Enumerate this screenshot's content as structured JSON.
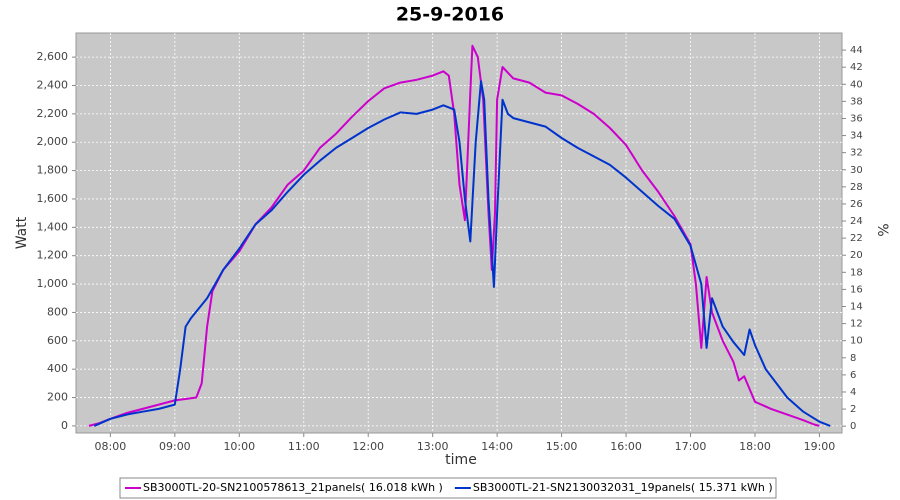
{
  "chart_data": {
    "type": "line",
    "title": "25-9-2016",
    "x_label": "time",
    "y_label": "Watt",
    "y2_label": "%",
    "xlim": [
      "07:28",
      "19:21"
    ],
    "xticks": [
      "08:00",
      "09:00",
      "10:00",
      "11:00",
      "12:00",
      "13:00",
      "14:00",
      "15:00",
      "16:00",
      "17:00",
      "18:00",
      "19:00"
    ],
    "ylim": [
      -50,
      2770
    ],
    "yticks": [
      0,
      200,
      400,
      600,
      800,
      {
        "value": 1000,
        "label": "1,000"
      },
      {
        "value": 1200,
        "label": "1,200"
      },
      {
        "value": 1400,
        "label": "1,400"
      },
      {
        "value": 1600,
        "label": "1,600"
      },
      {
        "value": 1800,
        "label": "1,800"
      },
      {
        "value": 2000,
        "label": "2,000"
      },
      {
        "value": 2200,
        "label": "2,200"
      },
      {
        "value": 2400,
        "label": "2,400"
      },
      {
        "value": 2600,
        "label": "2,600"
      }
    ],
    "y2lim": [
      -0.8,
      46
    ],
    "y2ticks": [
      0,
      2,
      4,
      6,
      8,
      10,
      12,
      14,
      16,
      18,
      20,
      22,
      24,
      26,
      28,
      30,
      32,
      34,
      36,
      38,
      40,
      42,
      44
    ],
    "grid": true,
    "legend": "bottom",
    "series": [
      {
        "name": "SB3000TL-20-SN2100578613_21panels( 16.018 kWh )",
        "color": "#cc00cc",
        "x": [
          "07:40",
          "07:50",
          "08:00",
          "08:15",
          "08:30",
          "08:45",
          "09:00",
          "09:10",
          "09:20",
          "09:25",
          "09:30",
          "09:35",
          "09:45",
          "10:00",
          "10:15",
          "10:30",
          "10:45",
          "11:00",
          "11:15",
          "11:30",
          "11:45",
          "12:00",
          "12:15",
          "12:30",
          "12:45",
          "13:00",
          "13:10",
          "13:15",
          "13:20",
          "13:25",
          "13:30",
          "13:35",
          "13:37",
          "13:42",
          "13:47",
          "13:52",
          "13:55",
          "13:58",
          "14:00",
          "14:05",
          "14:15",
          "14:30",
          "14:45",
          "15:00",
          "15:15",
          "15:30",
          "15:45",
          "16:00",
          "16:15",
          "16:30",
          "16:45",
          "17:00",
          "17:05",
          "17:10",
          "17:15",
          "17:20",
          "17:30",
          "17:40",
          "17:45",
          "17:50",
          "18:00",
          "18:15",
          "18:30",
          "18:45",
          "18:55",
          "19:00"
        ],
        "values": [
          0,
          20,
          50,
          90,
          120,
          150,
          180,
          190,
          200,
          300,
          700,
          950,
          1100,
          1230,
          1420,
          1540,
          1700,
          1800,
          1960,
          2060,
          2180,
          2290,
          2380,
          2420,
          2440,
          2470,
          2500,
          2470,
          2200,
          1700,
          1450,
          2350,
          2680,
          2600,
          2300,
          1500,
          1100,
          1500,
          2300,
          2530,
          2450,
          2420,
          2350,
          2330,
          2270,
          2200,
          2100,
          1980,
          1800,
          1650,
          1480,
          1280,
          1000,
          550,
          1050,
          800,
          600,
          450,
          320,
          350,
          170,
          120,
          80,
          40,
          10,
          0
        ]
      },
      {
        "name": "SB3000TL-21-SN2130032031_19panels( 15.371 kWh )",
        "color": "#0033cc",
        "x": [
          "07:45",
          "08:00",
          "08:15",
          "08:30",
          "08:45",
          "09:00",
          "09:05",
          "09:10",
          "09:15",
          "09:30",
          "09:45",
          "10:00",
          "10:15",
          "10:30",
          "10:45",
          "11:00",
          "11:15",
          "11:30",
          "11:45",
          "12:00",
          "12:15",
          "12:30",
          "12:45",
          "13:00",
          "13:10",
          "13:20",
          "13:25",
          "13:30",
          "13:35",
          "13:40",
          "13:45",
          "13:48",
          "13:52",
          "13:57",
          "14:00",
          "14:05",
          "14:10",
          "14:15",
          "14:30",
          "14:45",
          "15:00",
          "15:15",
          "15:30",
          "15:45",
          "16:00",
          "16:15",
          "16:30",
          "16:45",
          "17:00",
          "17:10",
          "17:15",
          "17:20",
          "17:30",
          "17:40",
          "17:50",
          "17:55",
          "18:00",
          "18:10",
          "18:20",
          "18:30",
          "18:45",
          "19:00",
          "19:10"
        ],
        "values": [
          0,
          50,
          80,
          100,
          120,
          150,
          400,
          700,
          760,
          900,
          1100,
          1250,
          1420,
          1520,
          1650,
          1770,
          1870,
          1960,
          2030,
          2100,
          2160,
          2210,
          2200,
          2230,
          2260,
          2230,
          2000,
          1600,
          1300,
          2000,
          2430,
          2300,
          1600,
          980,
          1500,
          2300,
          2200,
          2170,
          2140,
          2110,
          2030,
          1960,
          1900,
          1840,
          1750,
          1650,
          1550,
          1460,
          1270,
          1000,
          550,
          900,
          700,
          590,
          500,
          680,
          570,
          400,
          300,
          200,
          100,
          30,
          0
        ]
      }
    ]
  }
}
